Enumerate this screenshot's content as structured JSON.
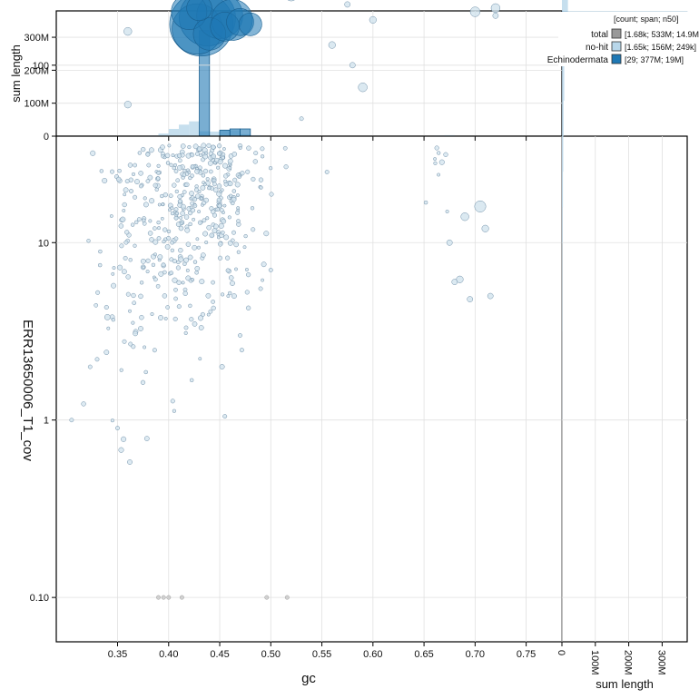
{
  "chart_data": {
    "type": "scatter",
    "x_label": "gc",
    "y_label": "ERR13650006_T1_cov",
    "top_y_label": "sum length",
    "right_x_label": "sum length",
    "x_ticks": [
      "0.35",
      "0.40",
      "0.45",
      "0.50",
      "0.55",
      "0.60",
      "0.65",
      "0.70",
      "0.75"
    ],
    "x_tick_values": [
      0.35,
      0.4,
      0.45,
      0.5,
      0.55,
      0.6,
      0.65,
      0.7,
      0.75
    ],
    "y_ticks": [
      "0.10",
      "1",
      "10",
      "100",
      "1k"
    ],
    "y_tick_values": [
      0.1,
      1,
      10,
      100,
      1000
    ],
    "top_ticks": [
      "0",
      "100M",
      "200M",
      "300M"
    ],
    "top_tick_values": [
      0,
      100,
      200,
      300
    ],
    "right_ticks": [
      "0",
      "100M",
      "200M",
      "300M"
    ],
    "right_tick_values": [
      0,
      100,
      200,
      300
    ],
    "xlim": [
      0.29,
      0.785
    ],
    "ylim_log10": [
      -1.25,
      1.6
    ],
    "top_ylim": [
      0,
      380
    ],
    "right_xlim": [
      0,
      375
    ],
    "legend": {
      "header": "[count; span; n50]",
      "placement": "top-right",
      "entries": [
        {
          "name": "total",
          "stats": "[1.68k; 533M; 14.9M]",
          "color": "#999999"
        },
        {
          "name": "no-hit",
          "stats": "[1.65k; 156M; 249k]",
          "color": "#b8d7ea"
        },
        {
          "name": "Echinodermata",
          "stats": "[29; 377M; 19M]",
          "color": "#1f78b4"
        }
      ]
    },
    "colors": {
      "nohit_fill": "#d2e3ee",
      "nohit_stroke": "#6f8fa8",
      "echino_fill": "#1f78b4",
      "total_fill": "#aaaaaa"
    },
    "echinodermata_points": [
      {
        "gc": 0.432,
        "cov": 170,
        "size": 19
      },
      {
        "gc": 0.438,
        "cov": 185,
        "size": 15
      },
      {
        "gc": 0.428,
        "cov": 160,
        "size": 12
      },
      {
        "gc": 0.45,
        "cov": 190,
        "size": 10
      },
      {
        "gc": 0.462,
        "cov": 180,
        "size": 8
      },
      {
        "gc": 0.42,
        "cov": 200,
        "size": 6
      },
      {
        "gc": 0.44,
        "cov": 150,
        "size": 5
      },
      {
        "gc": 0.455,
        "cov": 165,
        "size": 4
      },
      {
        "gc": 0.47,
        "cov": 175,
        "size": 3.5
      },
      {
        "gc": 0.43,
        "cov": 210,
        "size": 3
      },
      {
        "gc": 0.48,
        "cov": 170,
        "size": 2.5
      }
    ],
    "nohit_points": [
      {
        "gc": 0.545,
        "cov": 1400,
        "size": 0.08
      },
      {
        "gc": 0.555,
        "cov": 820,
        "size": 0.08
      },
      {
        "gc": 0.54,
        "cov": 420,
        "size": 0.3
      },
      {
        "gc": 0.53,
        "cov": 650,
        "size": 0.1
      },
      {
        "gc": 0.52,
        "cov": 250,
        "size": 0.15
      },
      {
        "gc": 0.515,
        "cov": 1100,
        "size": 0.08
      },
      {
        "gc": 0.5,
        "cov": 950,
        "size": 0.08
      },
      {
        "gc": 0.495,
        "cov": 480,
        "size": 0.08
      },
      {
        "gc": 0.49,
        "cov": 300,
        "size": 0.1
      },
      {
        "gc": 0.51,
        "cov": 560,
        "size": 0.08
      },
      {
        "gc": 0.59,
        "cov": 75,
        "size": 0.05
      },
      {
        "gc": 0.56,
        "cov": 130,
        "size": 0.03
      },
      {
        "gc": 0.6,
        "cov": 180,
        "size": 0.03
      },
      {
        "gc": 0.575,
        "cov": 220,
        "size": 0.02
      },
      {
        "gc": 0.62,
        "cov": 280,
        "size": 0.02
      },
      {
        "gc": 0.58,
        "cov": 100,
        "size": 0.02
      },
      {
        "gc": 0.555,
        "cov": 25,
        "size": 0.01
      },
      {
        "gc": 0.53,
        "cov": 50,
        "size": 0.01
      },
      {
        "gc": 0.5,
        "cov": 7,
        "size": 0.01
      },
      {
        "gc": 0.49,
        "cov": 5.5,
        "size": 0.01
      },
      {
        "gc": 0.47,
        "cov": 3,
        "size": 0.01
      },
      {
        "gc": 0.455,
        "cov": 1.05,
        "size": 0.01
      },
      {
        "gc": 0.35,
        "cov": 0.9,
        "size": 0.01
      },
      {
        "gc": 0.305,
        "cov": 1.0,
        "size": 0.01
      },
      {
        "gc": 0.33,
        "cov": 2.2,
        "size": 0.01
      },
      {
        "gc": 0.34,
        "cov": 3.8,
        "size": 0.02
      },
      {
        "gc": 0.36,
        "cov": 60,
        "size": 0.03
      },
      {
        "gc": 0.36,
        "cov": 155,
        "size": 0.04
      },
      {
        "gc": 0.39,
        "cov": 0.1,
        "size": 0.01
      },
      {
        "gc": 0.395,
        "cov": 0.1,
        "size": 0.01
      },
      {
        "gc": 0.4,
        "cov": 0.1,
        "size": 0.01
      },
      {
        "gc": 0.413,
        "cov": 0.1,
        "size": 0.01
      },
      {
        "gc": 0.496,
        "cov": 0.1,
        "size": 0.01
      },
      {
        "gc": 0.516,
        "cov": 0.1,
        "size": 0.01
      },
      {
        "gc": 0.672,
        "cov": 2400,
        "size": 0.03
      },
      {
        "gc": 0.67,
        "cov": 1900,
        "size": 0.04
      },
      {
        "gc": 0.663,
        "cov": 1500,
        "size": 0.06
      },
      {
        "gc": 0.66,
        "cov": 1050,
        "size": 0.08
      },
      {
        "gc": 0.665,
        "cov": 800,
        "size": 0.06
      },
      {
        "gc": 0.675,
        "cov": 600,
        "size": 0.05
      },
      {
        "gc": 0.68,
        "cov": 480,
        "size": 0.04
      },
      {
        "gc": 0.695,
        "cov": 560,
        "size": 0.05
      },
      {
        "gc": 0.705,
        "cov": 420,
        "size": 0.1
      },
      {
        "gc": 0.71,
        "cov": 380,
        "size": 0.06
      },
      {
        "gc": 0.725,
        "cov": 640,
        "size": 0.25
      },
      {
        "gc": 0.72,
        "cov": 610,
        "size": 0.15
      },
      {
        "gc": 0.735,
        "cov": 500,
        "size": 0.1
      },
      {
        "gc": 0.745,
        "cov": 470,
        "size": 0.06
      },
      {
        "gc": 0.755,
        "cov": 380,
        "size": 0.04
      },
      {
        "gc": 0.765,
        "cov": 400,
        "size": 0.03
      },
      {
        "gc": 0.77,
        "cov": 300,
        "size": 0.03
      },
      {
        "gc": 0.718,
        "cov": 350,
        "size": 0.03
      },
      {
        "gc": 0.73,
        "cov": 250,
        "size": 0.05
      },
      {
        "gc": 0.7,
        "cov": 200,
        "size": 0.06
      },
      {
        "gc": 0.72,
        "cov": 210,
        "size": 0.05
      },
      {
        "gc": 0.76,
        "cov": 260,
        "size": 0.03
      },
      {
        "gc": 0.69,
        "cov": 14,
        "size": 0.04
      },
      {
        "gc": 0.705,
        "cov": 16,
        "size": 0.08
      },
      {
        "gc": 0.71,
        "cov": 12,
        "size": 0.03
      },
      {
        "gc": 0.685,
        "cov": 6.2,
        "size": 0.03
      },
      {
        "gc": 0.68,
        "cov": 6,
        "size": 0.02
      },
      {
        "gc": 0.695,
        "cov": 4.8,
        "size": 0.02
      },
      {
        "gc": 0.715,
        "cov": 5,
        "size": 0.02
      },
      {
        "gc": 0.675,
        "cov": 10,
        "size": 0.02
      },
      {
        "gc": 0.72,
        "cov": 190,
        "size": 0.02
      },
      {
        "gc": 0.66,
        "cov": 330,
        "size": 0.02
      }
    ],
    "dense_clusters": [
      {
        "gc_mean": 0.425,
        "gc_sd": 0.022,
        "log_cov_mean": 2.15,
        "log_cov_sd": 0.18,
        "n": 620
      },
      {
        "gc_mean": 0.435,
        "gc_sd": 0.025,
        "log_cov_mean": 1.45,
        "log_cov_sd": 0.42,
        "n": 520
      },
      {
        "gc_mean": 0.415,
        "gc_sd": 0.03,
        "log_cov_mean": 2.6,
        "log_cov_sd": 0.12,
        "n": 90
      },
      {
        "gc_mean": 0.39,
        "gc_sd": 0.025,
        "log_cov_mean": 1.1,
        "log_cov_sd": 0.5,
        "n": 130
      },
      {
        "gc_mean": 0.36,
        "gc_sd": 0.02,
        "log_cov_mean": 0.8,
        "log_cov_sd": 0.4,
        "n": 60
      },
      {
        "gc_mean": 0.67,
        "gc_sd": 0.007,
        "log_cov_mean": 2.5,
        "log_cov_sd": 0.25,
        "n": 110
      },
      {
        "gc_mean": 0.665,
        "gc_sd": 0.006,
        "log_cov_mean": 1.65,
        "log_cov_sd": 0.25,
        "n": 30
      },
      {
        "gc_mean": 0.48,
        "gc_sd": 0.03,
        "log_cov_mean": 2.1,
        "log_cov_sd": 0.35,
        "n": 90
      }
    ],
    "top_histogram": {
      "bins": [
        0.38,
        0.39,
        0.4,
        0.41,
        0.42,
        0.43,
        0.44,
        0.45,
        0.46,
        0.47,
        0.48,
        0.49,
        0.5,
        0.66,
        0.67
      ],
      "nohit": [
        2,
        8,
        22,
        35,
        45,
        15,
        14,
        20,
        18,
        6,
        3,
        1,
        0,
        2,
        3
      ],
      "echinodermata": [
        0,
        0,
        0,
        0,
        0,
        320,
        0,
        18,
        22,
        22,
        0,
        0,
        0,
        0,
        0
      ],
      "total_bins": [
        0.38,
        0.39,
        0.4,
        0.41,
        0.42,
        0.43,
        0.44,
        0.45,
        0.46,
        0.47,
        0.48,
        0.49,
        0.5,
        0.66,
        0.67
      ],
      "total": [
        2,
        8,
        22,
        35,
        45,
        335,
        14,
        38,
        40,
        28,
        3,
        1,
        0,
        2,
        3
      ]
    },
    "right_histogram": {
      "log_bins": [
        -1.0,
        -0.5,
        0.0,
        0.5,
        1.0,
        1.2,
        1.4,
        1.6,
        1.8,
        2.0,
        2.1,
        2.2,
        2.3,
        2.4,
        2.5,
        2.6,
        2.7,
        2.8,
        2.9,
        3.0,
        3.1
      ],
      "nohit": [
        0,
        0,
        0.5,
        1,
        2,
        3,
        4,
        5,
        7,
        10,
        12,
        14,
        18,
        20,
        14,
        10,
        6,
        3,
        2,
        1,
        0
      ],
      "echinodermata": [
        0,
        0,
        0,
        0,
        0,
        0,
        0,
        0,
        0,
        0,
        0,
        375,
        0,
        0,
        0,
        0,
        0,
        0,
        0,
        0,
        0
      ]
    }
  }
}
